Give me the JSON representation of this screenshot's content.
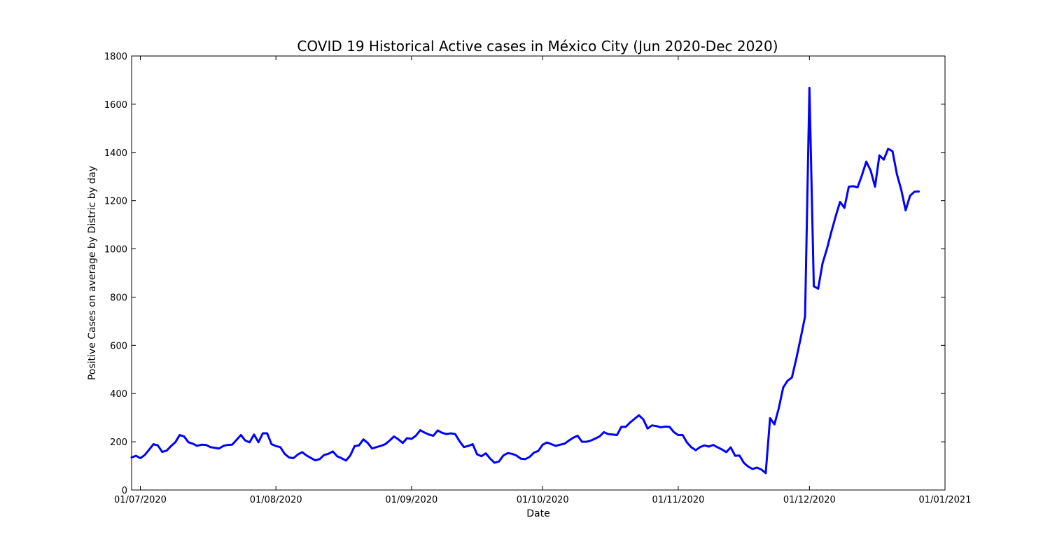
{
  "chart_data": {
    "type": "line",
    "title": "COVID 19 Historical Active cases in México City (Jun 2020-Dec 2020)",
    "xlabel": "Date",
    "ylabel": "Positive Cases on average by Distric by day",
    "xlim": [
      "2020-06-29",
      "2021-01-01"
    ],
    "ylim": [
      0,
      1800
    ],
    "y_ticks": [
      0,
      200,
      400,
      600,
      800,
      1000,
      1200,
      1400,
      1600,
      1800
    ],
    "x_ticks": [
      {
        "date": "2020-07-01",
        "label": "01/07/2020"
      },
      {
        "date": "2020-08-01",
        "label": "01/08/2020"
      },
      {
        "date": "2020-09-01",
        "label": "01/09/2020"
      },
      {
        "date": "2020-10-01",
        "label": "01/10/2020"
      },
      {
        "date": "2020-11-01",
        "label": "01/11/2020"
      },
      {
        "date": "2020-12-01",
        "label": "01/12/2020"
      },
      {
        "date": "2021-01-01",
        "label": "01/01/2021"
      }
    ],
    "grid": false,
    "legend": "none",
    "line_color": "#0000ff",
    "series": [
      {
        "points": [
          [
            "2020-06-29",
            135
          ],
          [
            "2020-06-30",
            142
          ],
          [
            "2020-07-01",
            132
          ],
          [
            "2020-07-02",
            145
          ],
          [
            "2020-07-03",
            167
          ],
          [
            "2020-07-04",
            190
          ],
          [
            "2020-07-05",
            185
          ],
          [
            "2020-07-06",
            158
          ],
          [
            "2020-07-07",
            163
          ],
          [
            "2020-07-08",
            182
          ],
          [
            "2020-07-09",
            198
          ],
          [
            "2020-07-10",
            228
          ],
          [
            "2020-07-11",
            222
          ],
          [
            "2020-07-12",
            198
          ],
          [
            "2020-07-13",
            192
          ],
          [
            "2020-07-14",
            183
          ],
          [
            "2020-07-15",
            188
          ],
          [
            "2020-07-16",
            187
          ],
          [
            "2020-07-17",
            178
          ],
          [
            "2020-07-18",
            175
          ],
          [
            "2020-07-19",
            172
          ],
          [
            "2020-07-20",
            183
          ],
          [
            "2020-07-21",
            187
          ],
          [
            "2020-07-22",
            188
          ],
          [
            "2020-07-23",
            208
          ],
          [
            "2020-07-24",
            228
          ],
          [
            "2020-07-25",
            205
          ],
          [
            "2020-07-26",
            198
          ],
          [
            "2020-07-27",
            230
          ],
          [
            "2020-07-28",
            198
          ],
          [
            "2020-07-29",
            235
          ],
          [
            "2020-07-30",
            235
          ],
          [
            "2020-07-31",
            190
          ],
          [
            "2020-08-01",
            182
          ],
          [
            "2020-08-02",
            178
          ],
          [
            "2020-08-03",
            150
          ],
          [
            "2020-08-04",
            135
          ],
          [
            "2020-08-05",
            132
          ],
          [
            "2020-08-06",
            147
          ],
          [
            "2020-08-07",
            157
          ],
          [
            "2020-08-08",
            143
          ],
          [
            "2020-08-09",
            133
          ],
          [
            "2020-08-10",
            123
          ],
          [
            "2020-08-11",
            128
          ],
          [
            "2020-08-12",
            145
          ],
          [
            "2020-08-13",
            150
          ],
          [
            "2020-08-14",
            160
          ],
          [
            "2020-08-15",
            140
          ],
          [
            "2020-08-16",
            132
          ],
          [
            "2020-08-17",
            122
          ],
          [
            "2020-08-18",
            143
          ],
          [
            "2020-08-19",
            182
          ],
          [
            "2020-08-20",
            185
          ],
          [
            "2020-08-21",
            210
          ],
          [
            "2020-08-22",
            195
          ],
          [
            "2020-08-23",
            172
          ],
          [
            "2020-08-24",
            178
          ],
          [
            "2020-08-25",
            183
          ],
          [
            "2020-08-26",
            190
          ],
          [
            "2020-08-27",
            205
          ],
          [
            "2020-08-28",
            222
          ],
          [
            "2020-08-29",
            210
          ],
          [
            "2020-08-30",
            195
          ],
          [
            "2020-08-31",
            215
          ],
          [
            "2020-09-01",
            212
          ],
          [
            "2020-09-02",
            225
          ],
          [
            "2020-09-03",
            248
          ],
          [
            "2020-09-04",
            238
          ],
          [
            "2020-09-05",
            230
          ],
          [
            "2020-09-06",
            225
          ],
          [
            "2020-09-07",
            247
          ],
          [
            "2020-09-08",
            237
          ],
          [
            "2020-09-09",
            232
          ],
          [
            "2020-09-10",
            235
          ],
          [
            "2020-09-11",
            232
          ],
          [
            "2020-09-12",
            202
          ],
          [
            "2020-09-13",
            178
          ],
          [
            "2020-09-14",
            183
          ],
          [
            "2020-09-15",
            190
          ],
          [
            "2020-09-16",
            148
          ],
          [
            "2020-09-17",
            140
          ],
          [
            "2020-09-18",
            152
          ],
          [
            "2020-09-19",
            130
          ],
          [
            "2020-09-20",
            113
          ],
          [
            "2020-09-21",
            118
          ],
          [
            "2020-09-22",
            143
          ],
          [
            "2020-09-23",
            153
          ],
          [
            "2020-09-24",
            150
          ],
          [
            "2020-09-25",
            143
          ],
          [
            "2020-09-26",
            130
          ],
          [
            "2020-09-27",
            128
          ],
          [
            "2020-09-28",
            137
          ],
          [
            "2020-09-29",
            155
          ],
          [
            "2020-09-30",
            162
          ],
          [
            "2020-10-01",
            188
          ],
          [
            "2020-10-02",
            197
          ],
          [
            "2020-10-03",
            190
          ],
          [
            "2020-10-04",
            183
          ],
          [
            "2020-10-05",
            188
          ],
          [
            "2020-10-06",
            192
          ],
          [
            "2020-10-07",
            205
          ],
          [
            "2020-10-08",
            217
          ],
          [
            "2020-10-09",
            225
          ],
          [
            "2020-10-10",
            200
          ],
          [
            "2020-10-11",
            200
          ],
          [
            "2020-10-12",
            205
          ],
          [
            "2020-10-13",
            213
          ],
          [
            "2020-10-14",
            222
          ],
          [
            "2020-10-15",
            240
          ],
          [
            "2020-10-16",
            232
          ],
          [
            "2020-10-17",
            230
          ],
          [
            "2020-10-18",
            228
          ],
          [
            "2020-10-19",
            262
          ],
          [
            "2020-10-20",
            262
          ],
          [
            "2020-10-21",
            280
          ],
          [
            "2020-10-22",
            295
          ],
          [
            "2020-10-23",
            310
          ],
          [
            "2020-10-24",
            293
          ],
          [
            "2020-10-25",
            255
          ],
          [
            "2020-10-26",
            268
          ],
          [
            "2020-10-27",
            265
          ],
          [
            "2020-10-28",
            260
          ],
          [
            "2020-10-29",
            263
          ],
          [
            "2020-10-30",
            262
          ],
          [
            "2020-10-31",
            240
          ],
          [
            "2020-11-01",
            228
          ],
          [
            "2020-11-02",
            228
          ],
          [
            "2020-11-03",
            197
          ],
          [
            "2020-11-04",
            177
          ],
          [
            "2020-11-05",
            165
          ],
          [
            "2020-11-06",
            178
          ],
          [
            "2020-11-07",
            185
          ],
          [
            "2020-11-08",
            180
          ],
          [
            "2020-11-09",
            187
          ],
          [
            "2020-11-10",
            177
          ],
          [
            "2020-11-11",
            168
          ],
          [
            "2020-11-12",
            157
          ],
          [
            "2020-11-13",
            177
          ],
          [
            "2020-11-14",
            142
          ],
          [
            "2020-11-15",
            143
          ],
          [
            "2020-11-16",
            113
          ],
          [
            "2020-11-17",
            97
          ],
          [
            "2020-11-18",
            87
          ],
          [
            "2020-11-19",
            93
          ],
          [
            "2020-11-20",
            85
          ],
          [
            "2020-11-21",
            70
          ],
          [
            "2020-11-22",
            298
          ],
          [
            "2020-11-23",
            272
          ],
          [
            "2020-11-24",
            340
          ],
          [
            "2020-11-25",
            425
          ],
          [
            "2020-11-26",
            453
          ],
          [
            "2020-11-27",
            467
          ],
          [
            "2020-11-28",
            545
          ],
          [
            "2020-11-29",
            630
          ],
          [
            "2020-11-30",
            720
          ],
          [
            "2020-12-01",
            1668
          ],
          [
            "2020-12-02",
            845
          ],
          [
            "2020-12-03",
            835
          ],
          [
            "2020-12-04",
            940
          ],
          [
            "2020-12-05",
            1000
          ],
          [
            "2020-12-06",
            1070
          ],
          [
            "2020-12-07",
            1135
          ],
          [
            "2020-12-08",
            1195
          ],
          [
            "2020-12-09",
            1170
          ],
          [
            "2020-12-10",
            1258
          ],
          [
            "2020-12-11",
            1260
          ],
          [
            "2020-12-12",
            1255
          ],
          [
            "2020-12-13",
            1305
          ],
          [
            "2020-12-14",
            1362
          ],
          [
            "2020-12-15",
            1325
          ],
          [
            "2020-12-16",
            1258
          ],
          [
            "2020-12-17",
            1388
          ],
          [
            "2020-12-18",
            1370
          ],
          [
            "2020-12-19",
            1415
          ],
          [
            "2020-12-20",
            1405
          ],
          [
            "2020-12-21",
            1310
          ],
          [
            "2020-12-22",
            1245
          ],
          [
            "2020-12-23",
            1160
          ],
          [
            "2020-12-24",
            1220
          ],
          [
            "2020-12-25",
            1237
          ],
          [
            "2020-12-26",
            1238
          ]
        ]
      }
    ]
  }
}
